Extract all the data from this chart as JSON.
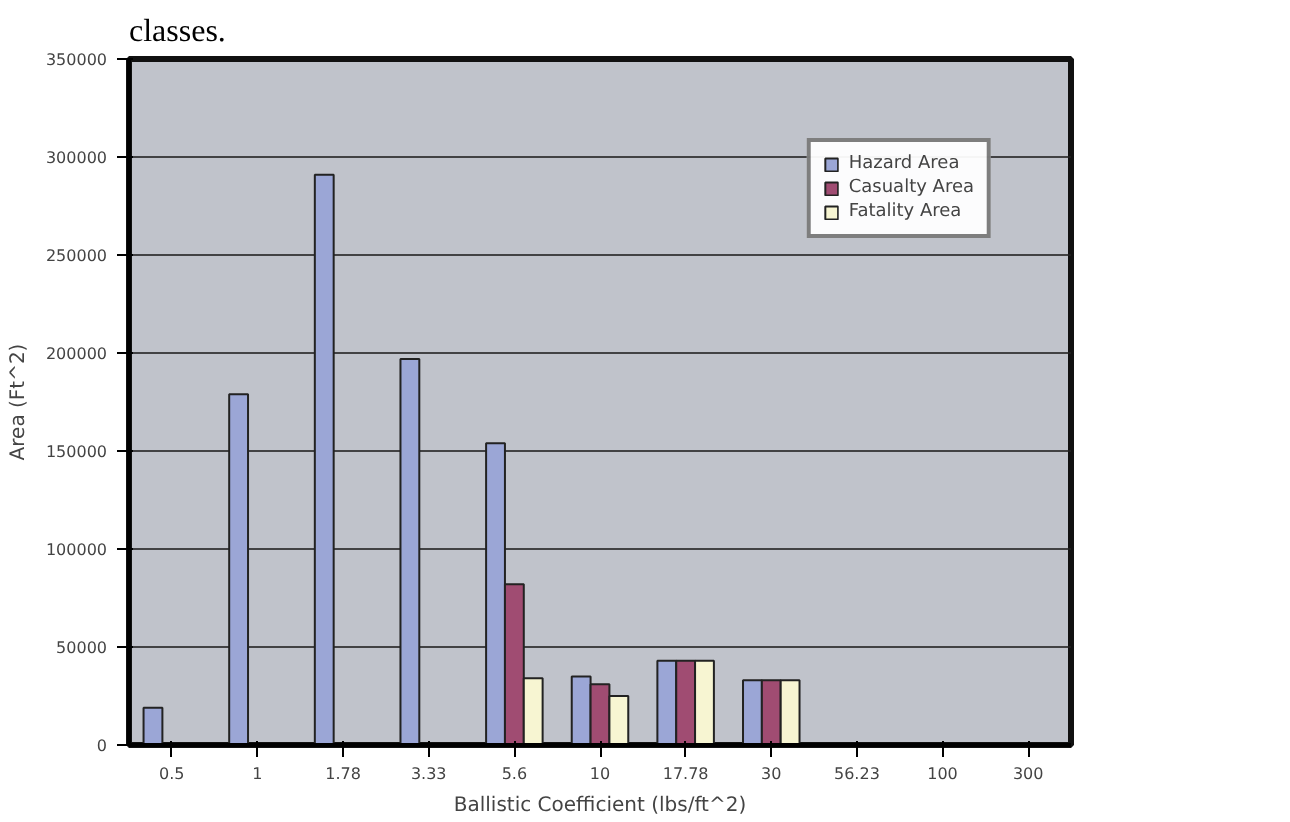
{
  "chart_data": {
    "type": "bar",
    "xlabel": "Ballistic Coefficient (lbs/ft^2)",
    "ylabel": "Area (Ft^2)",
    "annotations": [
      "classes."
    ],
    "categories": [
      "0.5",
      "1",
      "1.78",
      "3.33",
      "5.6",
      "10",
      "17.78",
      "30",
      "56.23",
      "100",
      "300"
    ],
    "series": [
      {
        "name": "Hazard Area",
        "color": "#9ba6d6",
        "values": [
          19000,
          179000,
          291000,
          197000,
          154000,
          35000,
          43000,
          33000,
          null,
          null,
          null
        ]
      },
      {
        "name": "Casualty Area",
        "color": "#a04c72",
        "values": [
          null,
          null,
          null,
          null,
          82000,
          31000,
          43000,
          33000,
          null,
          null,
          null
        ]
      },
      {
        "name": "Fatality Area",
        "color": "#f7f5d2",
        "values": [
          null,
          null,
          null,
          null,
          34000,
          25000,
          43000,
          33000,
          null,
          null,
          null
        ]
      }
    ],
    "ylim": [
      0,
      350000
    ],
    "yticks": [
      0,
      50000,
      100000,
      150000,
      200000,
      250000,
      300000,
      350000
    ],
    "grid": "y",
    "legend": "top right"
  }
}
